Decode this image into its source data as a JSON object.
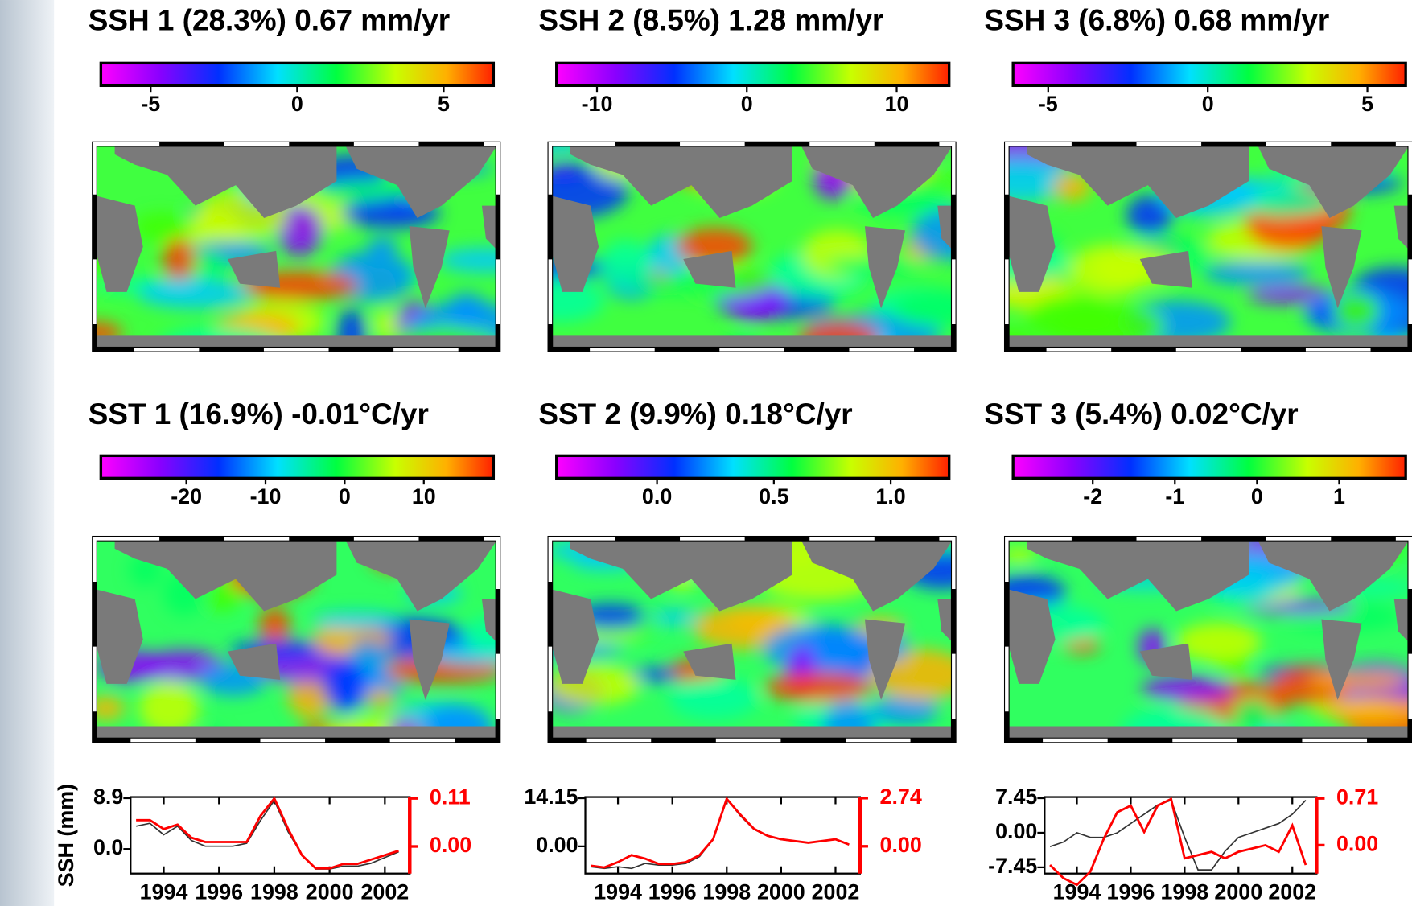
{
  "chart_data": [
    {
      "type": "map",
      "title": "SSH 1  (28.3%) 0.67 mm/yr",
      "clim": [
        -6.7,
        6.7
      ],
      "cticks": [
        -5,
        0,
        5
      ]
    },
    {
      "type": "map",
      "title": "SSH 2  (8.5%) 1.28 mm/yr",
      "clim": [
        -12.7,
        13.5
      ],
      "cticks": [
        -10,
        0,
        10
      ]
    },
    {
      "type": "map",
      "title": "SSH 3  (6.8%) 0.68 mm/yr",
      "clim": [
        -6.1,
        6.2
      ],
      "cticks": [
        -5,
        0,
        5
      ]
    },
    {
      "type": "map",
      "title": "SST 1 (16.9%) -0.01°C/yr",
      "clim": [
        -30.8,
        18.8
      ],
      "cticks": [
        -20,
        -10,
        0,
        10
      ]
    },
    {
      "type": "map",
      "title": "SST 2 (9.9%) 0.18°C/yr",
      "clim": [
        -0.43,
        1.25
      ],
      "cticks": [
        {
          "value": 0,
          "label": "0.0"
        },
        0.5,
        {
          "value": 1,
          "label": "1.0"
        }
      ]
    },
    {
      "type": "map",
      "title": "SST 3 (5.4%) 0.02°C/yr",
      "clim": [
        -2.97,
        1.81
      ],
      "cticks": [
        -2,
        -1,
        0,
        1
      ]
    },
    {
      "type": "line",
      "ylabel": "SSH (mm)",
      "x": [
        1993,
        1993.5,
        1994,
        1994.5,
        1995,
        1995.5,
        1996,
        1996.5,
        1997,
        1997.5,
        1998,
        1998.5,
        1999,
        1999.5,
        2000,
        2000.5,
        2001,
        2001.5,
        2002,
        2002.5
      ],
      "xlim": [
        1992.8,
        2002.9
      ],
      "xticks": [
        1994,
        1996,
        1998,
        2000,
        2002
      ],
      "ylim": [
        -4.3,
        9.1
      ],
      "yticks": [
        8.9,
        {
          "value": 0,
          "label": "0.0"
        }
      ],
      "y2lim": [
        -0.062,
        0.113
      ],
      "y2ticks": [
        0.11,
        {
          "value": 0,
          "label": "0.00"
        }
      ],
      "series": [
        {
          "color": "#333333",
          "values": [
            4,
            4.5,
            2.5,
            4,
            1.5,
            0.5,
            0.5,
            0.5,
            1,
            5,
            8.5,
            3,
            -1,
            -3.5,
            -3.5,
            -3,
            -3,
            -2.5,
            -1.5,
            -0.5
          ]
        },
        {
          "color": "#ff0000",
          "axis": "y2",
          "values": [
            0.06,
            0.06,
            0.04,
            0.05,
            0.02,
            0.01,
            0.01,
            0.01,
            0.01,
            0.07,
            0.11,
            0.04,
            -0.02,
            -0.05,
            -0.05,
            -0.04,
            -0.04,
            -0.03,
            -0.02,
            -0.01
          ]
        }
      ]
    },
    {
      "type": "line",
      "x": [
        1993,
        1993.5,
        1994,
        1994.5,
        1995,
        1995.5,
        1996,
        1996.5,
        1997,
        1997.5,
        1998,
        1998.5,
        1999,
        1999.5,
        2000,
        2000.5,
        2001,
        2001.5,
        2002,
        2002.5
      ],
      "xlim": [
        1992.8,
        2002.9
      ],
      "xticks": [
        1994,
        1996,
        1998,
        2000,
        2002
      ],
      "ylim": [
        -8,
        14.5
      ],
      "yticks": [
        14.15,
        {
          "value": 0,
          "label": "0.00"
        }
      ],
      "y2lim": [
        -1.55,
        2.8
      ],
      "y2ticks": [
        2.74,
        {
          "value": 0,
          "label": "0.00"
        }
      ],
      "series": [
        {
          "color": "#333333",
          "values": [
            -6,
            -6.5,
            -6,
            -6.5,
            -5,
            -5.5,
            -5.5,
            -5,
            -3,
            2,
            14,
            9,
            5,
            3,
            2,
            1.5,
            1,
            1.5,
            2,
            0.5
          ]
        },
        {
          "color": "#ff0000",
          "axis": "y2",
          "values": [
            -1.1,
            -1.2,
            -0.9,
            -0.5,
            -0.7,
            -1,
            -1,
            -0.9,
            -0.5,
            0.4,
            2.7,
            1.8,
            1,
            0.6,
            0.4,
            0.3,
            0.2,
            0.3,
            0.4,
            0.1
          ]
        }
      ]
    },
    {
      "type": "line",
      "x": [
        1993,
        1993.5,
        1994,
        1994.5,
        1995,
        1995.5,
        1996,
        1996.5,
        1997,
        1997.5,
        1998,
        1998.5,
        1999,
        1999.5,
        2000,
        2000.5,
        2001,
        2001.5,
        2002,
        2002.5
      ],
      "xlim": [
        1992.8,
        2002.9
      ],
      "xticks": [
        1994,
        1996,
        1998,
        2000,
        2002
      ],
      "ylim": [
        -8.8,
        7.7
      ],
      "yticks": [
        7.45,
        {
          "value": 0,
          "label": "0.00"
        },
        -7.45
      ],
      "y2lim": [
        -0.43,
        0.73
      ],
      "y2ticks": [
        0.71,
        {
          "value": 0,
          "label": "0.00"
        }
      ],
      "series": [
        {
          "color": "#333333",
          "values": [
            -3,
            -2,
            0,
            -1,
            -1,
            0,
            2,
            4,
            6,
            7,
            -1,
            -8,
            -8,
            -4,
            -1,
            0,
            1,
            2,
            4,
            7
          ]
        },
        {
          "color": "#ff0000",
          "axis": "y2",
          "values": [
            -0.3,
            -0.5,
            -0.6,
            -0.4,
            0.1,
            0.5,
            0.6,
            0.2,
            0.6,
            0.7,
            -0.2,
            -0.15,
            -0.1,
            -0.2,
            -0.1,
            -0.05,
            0,
            -0.1,
            0.3,
            -0.3
          ]
        }
      ]
    }
  ]
}
